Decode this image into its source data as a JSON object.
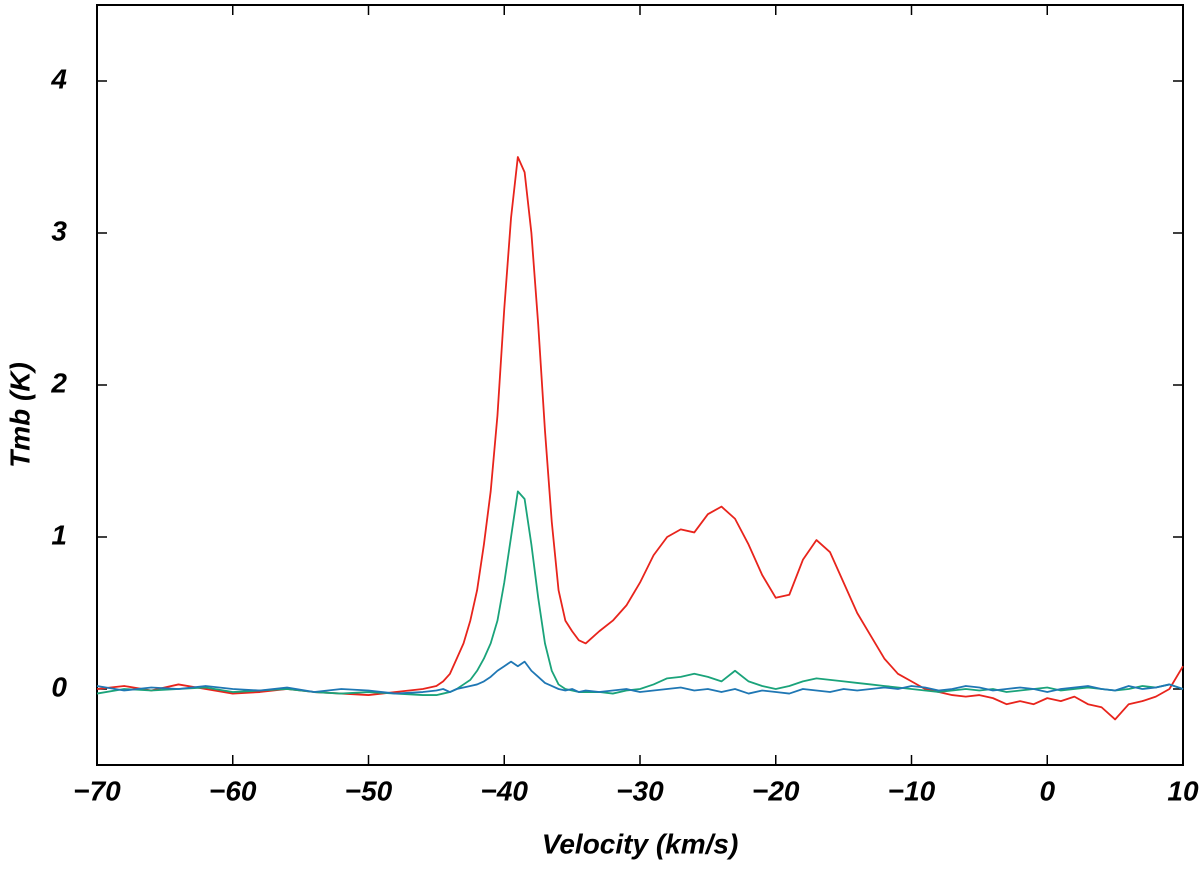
{
  "chart_data": {
    "type": "line",
    "xlabel": "Velocity (km/s)",
    "ylabel": "Tmb (K)",
    "xlim": [
      -70,
      10
    ],
    "ylim": [
      -0.5,
      4.5
    ],
    "xticks": [
      {
        "value": -70,
        "label": "−70"
      },
      {
        "value": -60,
        "label": "−60"
      },
      {
        "value": -50,
        "label": "−50"
      },
      {
        "value": -40,
        "label": "−40"
      },
      {
        "value": -30,
        "label": "−30"
      },
      {
        "value": -20,
        "label": "−20"
      },
      {
        "value": -10,
        "label": "−10"
      },
      0,
      10
    ],
    "yticks": [
      0,
      1,
      2,
      3,
      4
    ],
    "x": [
      -70,
      -68,
      -66,
      -64,
      -62,
      -60,
      -58,
      -56,
      -54,
      -52,
      -50,
      -48,
      -46,
      -45,
      -44.5,
      -44,
      -43.5,
      -43,
      -42.5,
      -42,
      -41.5,
      -41,
      -40.5,
      -40,
      -39.5,
      -39,
      -38.5,
      -38,
      -37.5,
      -37,
      -36.5,
      -36,
      -35.5,
      -35,
      -34.5,
      -34,
      -33,
      -32,
      -31,
      -30,
      -29,
      -28,
      -27,
      -26,
      -25,
      -24,
      -23,
      -22,
      -21,
      -20,
      -19,
      -18,
      -17,
      -16,
      -15,
      -14,
      -13,
      -12,
      -11,
      -10,
      -9,
      -8,
      -7,
      -6,
      -5,
      -4,
      -3,
      -2,
      -1,
      0,
      1,
      2,
      3,
      4,
      5,
      6,
      7,
      8,
      9,
      10
    ],
    "series": [
      {
        "color": "#e8241c",
        "values": [
          0,
          0.02,
          -0.01,
          0.03,
          0,
          -0.03,
          -0.02,
          0,
          -0.02,
          -0.03,
          -0.04,
          -0.02,
          0,
          0.02,
          0.05,
          0.1,
          0.2,
          0.3,
          0.45,
          0.65,
          0.95,
          1.3,
          1.8,
          2.5,
          3.1,
          3.5,
          3.4,
          3.0,
          2.4,
          1.7,
          1.1,
          0.65,
          0.45,
          0.38,
          0.32,
          0.3,
          0.38,
          0.45,
          0.55,
          0.7,
          0.88,
          1.0,
          1.05,
          1.03,
          1.15,
          1.2,
          1.12,
          0.95,
          0.75,
          0.6,
          0.62,
          0.85,
          0.98,
          0.9,
          0.7,
          0.5,
          0.35,
          0.2,
          0.1,
          0.05,
          0,
          -0.02,
          -0.04,
          -0.05,
          -0.04,
          -0.06,
          -0.1,
          -0.08,
          -0.1,
          -0.06,
          -0.08,
          -0.05,
          -0.1,
          -0.12,
          -0.2,
          -0.1,
          -0.08,
          -0.05,
          0,
          0.15
        ]
      },
      {
        "color": "#1aa37a",
        "values": [
          -0.03,
          0,
          -0.01,
          0,
          0.01,
          -0.02,
          -0.01,
          0,
          -0.02,
          -0.03,
          -0.02,
          -0.03,
          -0.04,
          -0.04,
          -0.03,
          -0.02,
          0,
          0.03,
          0.06,
          0.12,
          0.2,
          0.3,
          0.45,
          0.7,
          1.0,
          1.3,
          1.25,
          0.95,
          0.6,
          0.3,
          0.12,
          0.03,
          0,
          -0.01,
          -0.02,
          -0.02,
          -0.02,
          -0.03,
          -0.01,
          0,
          0.03,
          0.07,
          0.08,
          0.1,
          0.08,
          0.05,
          0.12,
          0.05,
          0.02,
          0,
          0.02,
          0.05,
          0.07,
          0.06,
          0.05,
          0.04,
          0.03,
          0.02,
          0.01,
          0,
          -0.01,
          -0.02,
          -0.01,
          0,
          -0.01,
          0,
          -0.02,
          -0.01,
          0,
          0.01,
          -0.01,
          0,
          0.01,
          0,
          -0.01,
          0,
          0.02,
          0.01,
          0.03,
          0
        ]
      },
      {
        "color": "#1f77b4",
        "values": [
          0.02,
          -0.01,
          0.01,
          0,
          0.02,
          0,
          -0.01,
          0.01,
          -0.02,
          0,
          -0.01,
          -0.03,
          -0.02,
          -0.01,
          0,
          -0.02,
          0,
          0.01,
          0.02,
          0.03,
          0.05,
          0.08,
          0.12,
          0.15,
          0.18,
          0.15,
          0.18,
          0.12,
          0.08,
          0.04,
          0.02,
          0,
          -0.01,
          0,
          -0.02,
          -0.01,
          -0.02,
          -0.01,
          0,
          -0.02,
          -0.01,
          0,
          0.01,
          -0.01,
          0,
          -0.02,
          0,
          -0.03,
          -0.01,
          -0.02,
          -0.03,
          0,
          -0.01,
          -0.02,
          0,
          -0.01,
          0,
          0.01,
          0,
          0.02,
          0.01,
          -0.01,
          0,
          0.02,
          0.01,
          -0.01,
          0,
          0.01,
          0,
          -0.02,
          0,
          0.01,
          0.02,
          0,
          -0.01,
          0.02,
          0,
          0.01,
          0.03,
          0
        ]
      }
    ]
  }
}
